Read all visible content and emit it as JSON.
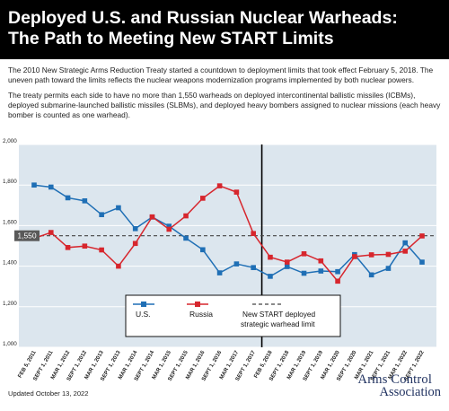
{
  "header": {
    "title_line1": "Deployed U.S. and Russian Nuclear Warheads:",
    "title_line2": "The Path to Meeting New START Limits"
  },
  "intro": {
    "p1": "The 2010 New Strategic Arms Reduction Treaty started a countdown to deployment limits that took effect February 5, 2018. The uneven path toward the limits reflects the nuclear weapons modernization programs implemented by both nuclear powers.",
    "p2": "The treaty permits each side to have no more than 1,550 warheads on deployed intercontinental ballistic missiles (ICBMs), deployed submarine-launched ballistic missiles (SLBMs), and deployed heavy bombers assigned to nuclear missions (each heavy bomber is counted as one warhead)."
  },
  "footer": {
    "updated": "Updated October 13, 2022",
    "logo_line1": "Arms Control",
    "logo_line2": "Association"
  },
  "colors": {
    "us": "#1f6fb5",
    "russia": "#d7262d",
    "limit": "#444444",
    "plot_bg": "#dce6ee",
    "limit_label_bg": "#595959"
  },
  "chart_data": {
    "type": "line",
    "x": [
      "FEB 5, 2011",
      "SEPT 1, 2011",
      "MAR 1, 2012",
      "SEPT 1, 2012",
      "MAR 1, 2013",
      "SEPT 1, 2013",
      "MAR 1, 2014",
      "SEPT 1, 2014",
      "MAR 1, 2015",
      "SEPT 1, 2015",
      "MAR 1, 2016",
      "SEPT 1, 2016",
      "MAR 1, 2017",
      "SEPT 1, 2017",
      "FEB 5, 2018",
      "SEPT 1, 2018",
      "MAR 1, 2019",
      "SEPT 1, 2019",
      "MAR 1, 2020",
      "SEPT 1, 2020",
      "MAR 1, 2021",
      "SEPT 1, 2021",
      "MAR 1, 2022",
      "SEPT 1, 2022"
    ],
    "series": [
      {
        "name": "U.S.",
        "values": [
          1800,
          1790,
          1737,
          1722,
          1654,
          1688,
          1585,
          1642,
          1597,
          1538,
          1481,
          1367,
          1411,
          1393,
          1350,
          1398,
          1365,
          1376,
          1373,
          1457,
          1357,
          1389,
          1515,
          1420
        ]
      },
      {
        "name": "Russia",
        "values": [
          1537,
          1566,
          1492,
          1499,
          1480,
          1400,
          1512,
          1643,
          1582,
          1648,
          1735,
          1796,
          1765,
          1561,
          1444,
          1420,
          1461,
          1426,
          1326,
          1447,
          1456,
          1458,
          1474,
          1549
        ]
      },
      {
        "name": "New START deployed strategic warhead limit",
        "values": [
          1550,
          1550,
          1550,
          1550,
          1550,
          1550,
          1550,
          1550,
          1550,
          1550,
          1550,
          1550,
          1550,
          1550,
          1550,
          1550,
          1550,
          1550,
          1550,
          1550,
          1550,
          1550,
          1550,
          1550
        ]
      }
    ],
    "y_ticks": [
      "2,000",
      "1,800",
      "1,600",
      "1,400",
      "1,200",
      "1,000"
    ],
    "limit_label": "1,550",
    "ylim": [
      1000,
      2000
    ],
    "legend": {
      "us": "U.S.",
      "russia": "Russia",
      "limit_line1": "New START deployed",
      "limit_line2": "strategic warhead limit"
    },
    "treaty_marker": "FEB 5, 2018",
    "legend_position": "bottom-center"
  }
}
